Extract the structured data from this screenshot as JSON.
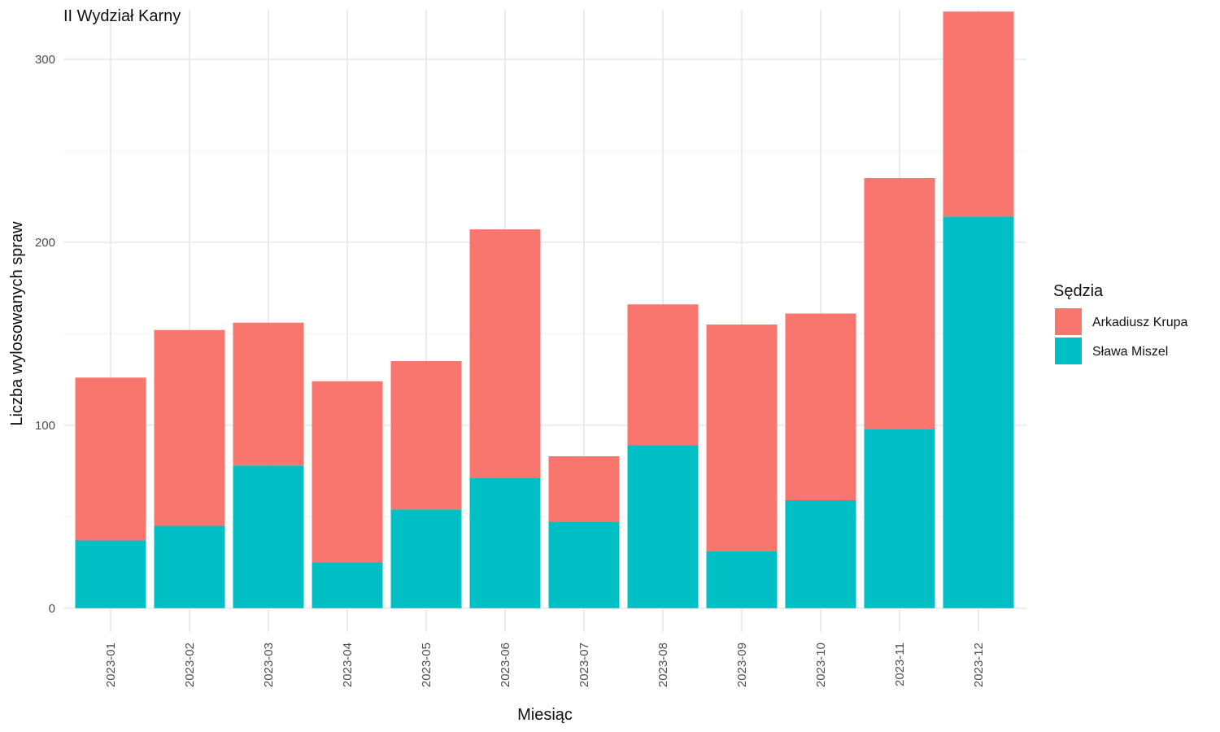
{
  "chart_data": {
    "type": "bar",
    "stacked": true,
    "title": "II Wydział Karny",
    "xlabel": "Miesiąc",
    "ylabel": "Liczba wylosowanych spraw",
    "ylim": [
      -13,
      327
    ],
    "yticks": [
      0,
      100,
      200,
      300
    ],
    "grid": true,
    "legend": {
      "title": "Sędzia",
      "position": "right"
    },
    "categories": [
      "2023-01",
      "2023-02",
      "2023-03",
      "2023-04",
      "2023-05",
      "2023-06",
      "2023-07",
      "2023-08",
      "2023-09",
      "2023-10",
      "2023-11",
      "2023-12"
    ],
    "series": [
      {
        "name": "Sława Miszel",
        "color": "#00BFC4",
        "values": [
          37,
          45,
          78,
          25,
          54,
          71,
          47,
          89,
          31,
          59,
          98,
          214
        ]
      },
      {
        "name": "Arkadiusz Krupa",
        "color": "#F8766D",
        "values": [
          89,
          107,
          78,
          99,
          81,
          136,
          36,
          77,
          124,
          102,
          137,
          112
        ]
      }
    ]
  }
}
